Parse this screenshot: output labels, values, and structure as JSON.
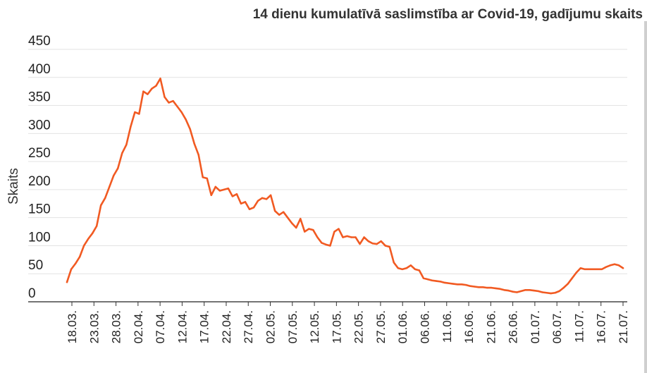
{
  "colors": {
    "line": "#f15a22",
    "text": "#222222",
    "grid": "#e3e3e3"
  },
  "chart_data": {
    "type": "line",
    "title": "14 dienu kumulatīvā saslimstība ar Covid-19, gadījumu skaits",
    "ylabel": "Skaits",
    "xlabel": "",
    "ylim": [
      0,
      450
    ],
    "yticks": [
      "0",
      "50",
      "100",
      "150",
      "200",
      "250",
      "300",
      "350",
      "400",
      "450"
    ],
    "grid": true,
    "legend": "none",
    "xticks": [
      "18.03.",
      "23.03.",
      "28.03.",
      "02.04.",
      "07.04.",
      "12.04.",
      "17.04.",
      "22.04.",
      "27.04.",
      "02.05.",
      "07.05.",
      "12.05.",
      "17.05.",
      "22.05.",
      "27.05.",
      "01.06.",
      "06.06.",
      "11.06.",
      "16.06.",
      "21.06.",
      "26.06.",
      "01.07.",
      "06.07.",
      "11.07.",
      "16.07.",
      "21.07."
    ],
    "series": [
      {
        "values": [
          35,
          58,
          68,
          80,
          100,
          112,
          122,
          135,
          172,
          185,
          205,
          225,
          238,
          265,
          280,
          312,
          338,
          335,
          375,
          370,
          380,
          385,
          398,
          365,
          355,
          358,
          348,
          338,
          325,
          308,
          282,
          262,
          222,
          220,
          190,
          205,
          198,
          200,
          202,
          188,
          192,
          175,
          178,
          165,
          168,
          180,
          185,
          183,
          190,
          162,
          155,
          160,
          150,
          140,
          132,
          148,
          125,
          130,
          128,
          115,
          105,
          102,
          100,
          125,
          130,
          115,
          117,
          115,
          115,
          103,
          115,
          108,
          104,
          103,
          108,
          100,
          98,
          70,
          60,
          58,
          60,
          65,
          58,
          56,
          42,
          40,
          38,
          37,
          36,
          34,
          33,
          32,
          31,
          31,
          30,
          28,
          27,
          26,
          26,
          25,
          25,
          24,
          23,
          21,
          20,
          18,
          17,
          19,
          21,
          21,
          20,
          19,
          17,
          16,
          15,
          16,
          19,
          25,
          32,
          42,
          52,
          60,
          58,
          58,
          58,
          58,
          58,
          62,
          65,
          67,
          65,
          60
        ]
      }
    ]
  }
}
